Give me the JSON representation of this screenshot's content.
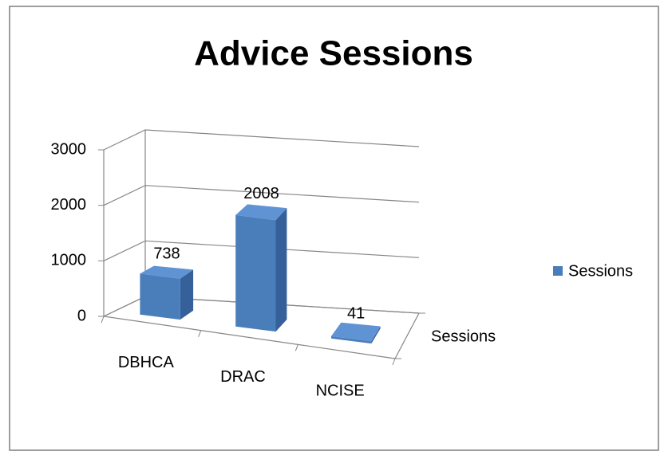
{
  "chart_data": {
    "type": "bar3d",
    "title": "Advice Sessions",
    "categories": [
      "DBHCA",
      "DRAC",
      "NCISE"
    ],
    "series": [
      {
        "name": "Sessions",
        "color": "#4a7ebb",
        "values": [
          738,
          2008,
          41
        ]
      }
    ],
    "ylim": [
      0,
      3000
    ],
    "yticks": [
      0,
      1000,
      2000,
      3000
    ],
    "grid": true,
    "legend": "right"
  }
}
